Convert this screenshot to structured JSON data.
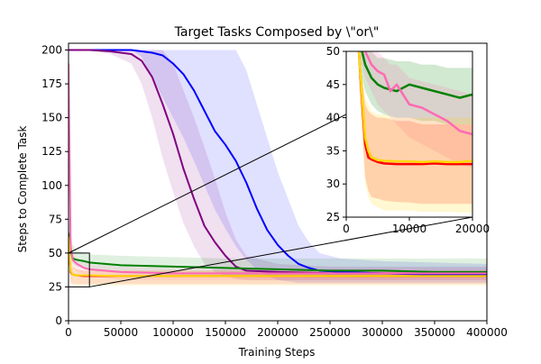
{
  "chart_data": [
    {
      "type": "line",
      "title": "Target Tasks Composed by \\\"or\\\"",
      "xlabel": "Training Steps",
      "ylabel": "Steps to Complete Task",
      "xlim": [
        0,
        400000
      ],
      "ylim": [
        0,
        205
      ],
      "xticks": [
        0,
        50000,
        100000,
        150000,
        200000,
        250000,
        300000,
        350000,
        400000
      ],
      "xtick_labels": [
        "0",
        "50000",
        "100000",
        "150000",
        "200000",
        "250000",
        "300000",
        "350000",
        "400000"
      ],
      "yticks": [
        0,
        25,
        50,
        75,
        100,
        125,
        150,
        175,
        200
      ],
      "ytick_labels": [
        "0",
        "25",
        "50",
        "75",
        "100",
        "125",
        "150",
        "175",
        "200"
      ],
      "grid": false,
      "legend": "none",
      "series": [
        {
          "color": "#0000ff",
          "x": [
            0,
            20000,
            40000,
            60000,
            70000,
            80000,
            90000,
            100000,
            110000,
            120000,
            130000,
            140000,
            150000,
            160000,
            170000,
            180000,
            190000,
            200000,
            210000,
            220000,
            230000,
            240000,
            260000,
            300000,
            350000,
            400000
          ],
          "values": [
            200,
            200,
            200,
            200,
            199,
            198,
            196,
            190,
            182,
            170,
            155,
            140,
            130,
            118,
            102,
            83,
            67,
            56,
            48,
            42,
            39,
            37,
            36,
            35,
            34,
            34
          ],
          "band_upper": [
            200,
            200,
            200,
            200,
            200,
            200,
            200,
            200,
            200,
            200,
            200,
            200,
            200,
            200,
            185,
            160,
            135,
            110,
            90,
            70,
            58,
            50,
            46,
            44,
            43,
            42
          ],
          "band_lower": [
            200,
            200,
            200,
            200,
            195,
            180,
            165,
            150,
            135,
            118,
            100,
            82,
            68,
            55,
            45,
            38,
            33,
            30,
            29,
            28,
            28,
            28,
            28,
            28,
            28,
            28
          ]
        },
        {
          "color": "#800080",
          "x": [
            0,
            20000,
            40000,
            60000,
            70000,
            80000,
            90000,
            100000,
            110000,
            120000,
            130000,
            140000,
            150000,
            160000,
            170000,
            200000,
            250000,
            300000,
            400000
          ],
          "values": [
            200,
            200,
            199,
            197,
            192,
            180,
            160,
            138,
            112,
            90,
            70,
            58,
            48,
            40,
            37,
            36,
            35,
            35,
            35
          ],
          "band_upper": [
            200,
            200,
            200,
            200,
            200,
            200,
            200,
            190,
            170,
            150,
            128,
            105,
            80,
            60,
            48,
            42,
            40,
            40,
            40
          ],
          "band_lower": [
            200,
            200,
            197,
            190,
            175,
            150,
            120,
            95,
            72,
            55,
            42,
            36,
            33,
            31,
            30,
            30,
            30,
            30,
            30
          ]
        },
        {
          "color": "#008000",
          "x": [
            0,
            2000,
            4000,
            8000,
            15000,
            20000,
            50000,
            100000,
            150000,
            200000,
            250000,
            300000,
            350000,
            400000
          ],
          "values": [
            65,
            52,
            46,
            45,
            44,
            43,
            41,
            40,
            39,
            38,
            37,
            37,
            36,
            36
          ],
          "band_upper": [
            80,
            62,
            56,
            52,
            50,
            49,
            48,
            47,
            46,
            46,
            46,
            46,
            46,
            46
          ],
          "band_lower": [
            55,
            46,
            42,
            40,
            38,
            37,
            35,
            34,
            33,
            33,
            32,
            32,
            32,
            32
          ]
        },
        {
          "color": "#ff69b4",
          "x": [
            0,
            2000,
            4000,
            8000,
            15000,
            20000,
            50000,
            100000,
            200000,
            300000,
            400000
          ],
          "values": [
            190,
            55,
            45,
            42,
            39,
            38,
            36,
            35,
            35,
            35,
            35
          ],
          "band_upper": [
            200,
            70,
            50,
            46,
            43,
            42,
            40,
            39,
            39,
            39,
            39
          ],
          "band_lower": [
            170,
            45,
            40,
            36,
            34,
            33,
            30,
            30,
            30,
            30,
            30
          ]
        },
        {
          "color": "#ff0000",
          "x": [
            0,
            2000,
            4000,
            8000,
            15000,
            20000,
            50000,
            100000,
            200000,
            300000,
            400000
          ],
          "values": [
            60,
            36,
            34,
            33.5,
            33,
            33,
            33,
            33,
            33,
            33,
            33
          ],
          "band_upper": [
            75,
            45,
            40,
            38,
            37,
            37,
            37,
            37,
            37,
            37,
            37
          ],
          "band_lower": [
            45,
            28,
            27,
            27,
            27,
            27,
            27,
            27,
            27,
            27,
            27
          ]
        },
        {
          "color": "#ffd700",
          "x": [
            0,
            2000,
            4000,
            8000,
            15000,
            20000,
            50000,
            100000,
            200000,
            300000,
            400000
          ],
          "values": [
            62,
            37,
            34,
            33.5,
            33.5,
            33.5,
            33,
            33,
            33,
            33,
            33
          ],
          "band_upper": [
            78,
            46,
            41,
            38,
            37,
            37,
            37,
            37,
            37,
            37,
            37
          ],
          "band_lower": [
            45,
            28,
            27,
            26,
            26,
            26,
            26,
            26,
            26,
            26,
            26
          ]
        }
      ]
    },
    {
      "type": "line",
      "title": "",
      "xlim": [
        0,
        20000
      ],
      "ylim": [
        25,
        50
      ],
      "xticks": [
        0,
        10000,
        20000
      ],
      "xtick_labels": [
        "0",
        "10000",
        "20000"
      ],
      "yticks": [
        25,
        30,
        35,
        40,
        45,
        50
      ],
      "ytick_labels": [
        "25",
        "30",
        "35",
        "40",
        "45",
        "50"
      ],
      "grid": false,
      "series": [
        {
          "color": "#008000",
          "x": [
            2000,
            2500,
            3000,
            4000,
            5000,
            6000,
            8000,
            10000,
            12000,
            14000,
            16000,
            18000,
            20000
          ],
          "values": [
            52,
            50,
            48,
            46,
            45,
            44.5,
            44,
            45,
            44.5,
            44,
            43.5,
            43,
            43.5
          ],
          "band_upper": [
            54,
            54,
            52,
            50,
            49,
            49,
            48.5,
            48.5,
            48,
            48,
            47.5,
            47.5,
            47.5
          ],
          "band_lower": [
            48,
            46,
            44,
            42,
            41,
            40.5,
            40,
            40,
            39.5,
            39.5,
            39,
            39,
            39
          ]
        },
        {
          "color": "#ff69b4",
          "x": [
            2000,
            3000,
            4000,
            5000,
            6000,
            7000,
            8000,
            10000,
            12000,
            14000,
            16000,
            18000,
            20000
          ],
          "values": [
            55,
            50,
            48,
            47,
            46.5,
            44,
            45,
            42,
            41.5,
            40.5,
            39.5,
            38,
            37.5
          ],
          "band_upper": [
            58,
            53,
            51,
            50,
            49,
            48,
            48,
            46,
            45.5,
            45,
            44.5,
            44,
            43.5
          ],
          "band_lower": [
            50,
            46,
            44,
            42,
            41,
            40,
            39,
            37,
            36,
            35,
            34,
            33,
            32.5
          ]
        },
        {
          "color": "#ff0000",
          "x": [
            2000,
            3000,
            3500,
            4000,
            5000,
            6000,
            8000,
            10000,
            12000,
            14000,
            16000,
            18000,
            20000
          ],
          "values": [
            50,
            36,
            34,
            33.7,
            33.3,
            33.1,
            33,
            33,
            33,
            33.1,
            33,
            33,
            33
          ],
          "band_upper": [
            50,
            42,
            41,
            40.5,
            40,
            40,
            39.5,
            39.5,
            39,
            39,
            39,
            39,
            39
          ],
          "band_lower": [
            46,
            31,
            29,
            28,
            27.8,
            27.5,
            27.3,
            27.2,
            27,
            27,
            27,
            27,
            27
          ]
        },
        {
          "color": "#ffd700",
          "x": [
            2000,
            3000,
            3500,
            4000,
            5000,
            6000,
            8000,
            10000,
            12000,
            14000,
            16000,
            18000,
            20000
          ],
          "values": [
            50,
            37,
            35,
            34,
            33.6,
            33.5,
            33.4,
            33.4,
            33.3,
            33.4,
            33.3,
            33.3,
            33.5
          ],
          "band_upper": [
            50,
            43,
            42,
            41,
            40.5,
            40.5,
            40,
            40,
            40,
            40,
            40,
            40,
            40
          ],
          "band_lower": [
            45,
            30,
            28,
            27,
            26.5,
            26,
            26,
            26,
            25.8,
            25.8,
            25.8,
            25.7,
            25.7
          ]
        }
      ]
    }
  ]
}
